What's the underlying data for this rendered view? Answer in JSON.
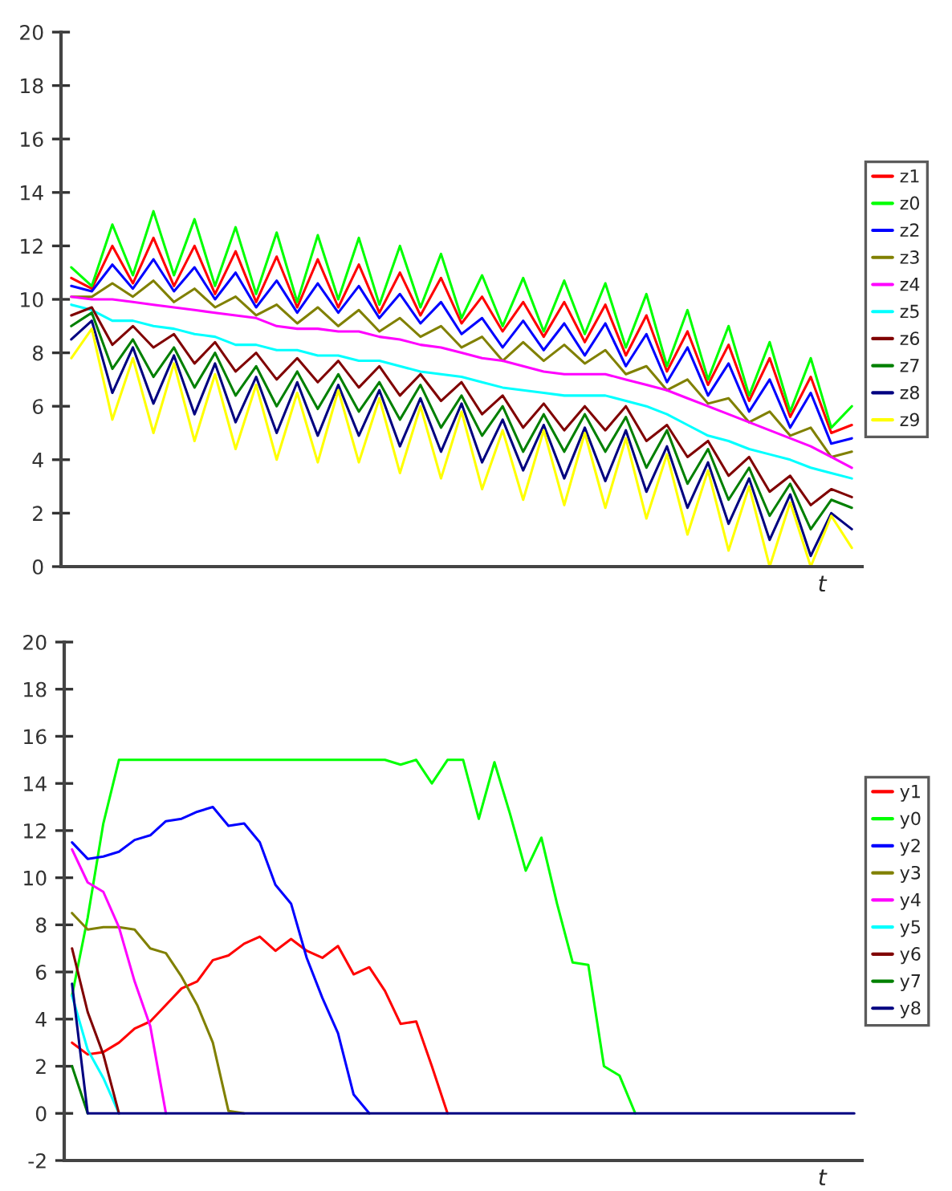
{
  "chart_data": [
    {
      "type": "line",
      "xlabel": "t",
      "tick_labels": "y",
      "legend": "right",
      "ylim": [
        0,
        20
      ],
      "yticks": [
        0,
        2,
        4,
        6,
        8,
        10,
        12,
        14,
        16,
        18,
        20
      ],
      "categories": [
        null,
        null,
        null,
        null,
        null,
        null,
        null,
        null,
        null,
        null,
        null,
        null,
        null,
        null,
        null,
        null,
        null,
        null,
        null,
        null,
        null,
        null,
        null,
        null,
        null,
        null,
        null,
        null,
        null,
        null,
        null,
        null,
        null,
        null,
        null,
        null,
        null,
        null,
        null
      ],
      "series": [
        {
          "name": "z1",
          "color": "#ff0000",
          "values": [
            10.8,
            10.4,
            12.0,
            10.6,
            12.3,
            10.5,
            12.0,
            10.2,
            11.8,
            9.9,
            11.6,
            9.7,
            11.5,
            9.7,
            11.3,
            9.5,
            11.0,
            9.4,
            10.8,
            9.1,
            10.1,
            8.8,
            9.9,
            8.6,
            9.9,
            8.4,
            9.8,
            7.9,
            9.4,
            7.3,
            8.8,
            6.8,
            8.3,
            6.2,
            7.8,
            5.6,
            7.1,
            5.0,
            5.3
          ]
        },
        {
          "name": "z0",
          "color": "#00ff00",
          "values": [
            11.2,
            10.5,
            12.8,
            10.9,
            13.3,
            10.9,
            13.0,
            10.5,
            12.7,
            10.2,
            12.5,
            9.9,
            12.4,
            10.0,
            12.3,
            9.8,
            12.0,
            9.7,
            11.7,
            9.3,
            10.9,
            9.0,
            10.8,
            8.8,
            10.7,
            8.7,
            10.6,
            8.2,
            10.2,
            7.5,
            9.6,
            7.0,
            9.0,
            6.4,
            8.4,
            5.8,
            7.8,
            5.2,
            6.0
          ]
        },
        {
          "name": "z2",
          "color": "#0000ff",
          "values": [
            10.5,
            10.3,
            11.3,
            10.4,
            11.5,
            10.3,
            11.2,
            10.0,
            11.0,
            9.7,
            10.7,
            9.5,
            10.6,
            9.5,
            10.5,
            9.3,
            10.2,
            9.1,
            9.9,
            8.7,
            9.3,
            8.2,
            9.2,
            8.1,
            9.1,
            7.9,
            9.1,
            7.5,
            8.7,
            6.9,
            8.2,
            6.4,
            7.6,
            5.8,
            7.0,
            5.2,
            6.5,
            4.6,
            4.8
          ]
        },
        {
          "name": "z3",
          "color": "#808000",
          "values": [
            10.1,
            10.1,
            10.6,
            10.1,
            10.7,
            9.9,
            10.4,
            9.7,
            10.1,
            9.4,
            9.8,
            9.1,
            9.7,
            9.0,
            9.6,
            8.8,
            9.3,
            8.6,
            9.0,
            8.2,
            8.6,
            7.7,
            8.4,
            7.7,
            8.3,
            7.6,
            8.1,
            7.2,
            7.5,
            6.6,
            7.0,
            6.1,
            6.3,
            5.4,
            5.8,
            4.9,
            5.2,
            4.1,
            4.3
          ]
        },
        {
          "name": "z4",
          "color": "#ff00ff",
          "values": [
            10.1,
            10.0,
            10.0,
            9.9,
            9.8,
            9.7,
            9.6,
            9.5,
            9.4,
            9.3,
            9.0,
            8.9,
            8.9,
            8.8,
            8.8,
            8.6,
            8.5,
            8.3,
            8.2,
            8.0,
            7.8,
            7.7,
            7.5,
            7.3,
            7.2,
            7.2,
            7.2,
            7.0,
            6.8,
            6.6,
            6.3,
            6.0,
            5.7,
            5.4,
            5.1,
            4.8,
            4.5,
            4.1,
            3.7
          ]
        },
        {
          "name": "z5",
          "color": "#00ffff",
          "values": [
            9.8,
            9.6,
            9.2,
            9.2,
            9.0,
            8.9,
            8.7,
            8.6,
            8.3,
            8.3,
            8.1,
            8.1,
            7.9,
            7.9,
            7.7,
            7.7,
            7.5,
            7.3,
            7.2,
            7.1,
            6.9,
            6.7,
            6.6,
            6.5,
            6.4,
            6.4,
            6.4,
            6.2,
            6.0,
            5.7,
            5.3,
            4.9,
            4.7,
            4.4,
            4.2,
            4.0,
            3.7,
            3.5,
            3.3
          ]
        },
        {
          "name": "z6",
          "color": "#800000",
          "values": [
            9.4,
            9.7,
            8.3,
            9.0,
            8.2,
            8.7,
            7.6,
            8.4,
            7.3,
            8.0,
            7.0,
            7.8,
            6.9,
            7.7,
            6.7,
            7.5,
            6.4,
            7.2,
            6.2,
            6.9,
            5.7,
            6.4,
            5.2,
            6.1,
            5.1,
            6.0,
            5.1,
            6.0,
            4.7,
            5.3,
            4.1,
            4.7,
            3.4,
            4.1,
            2.8,
            3.4,
            2.3,
            2.9,
            2.6
          ]
        },
        {
          "name": "z7",
          "color": "#008000",
          "values": [
            9.0,
            9.5,
            7.4,
            8.5,
            7.1,
            8.2,
            6.7,
            8.0,
            6.4,
            7.5,
            6.0,
            7.3,
            5.9,
            7.2,
            5.8,
            6.9,
            5.5,
            6.8,
            5.2,
            6.4,
            4.9,
            6.0,
            4.3,
            5.7,
            4.3,
            5.7,
            4.3,
            5.6,
            3.7,
            5.1,
            3.1,
            4.4,
            2.5,
            3.7,
            1.9,
            3.1,
            1.4,
            2.5,
            2.2
          ]
        },
        {
          "name": "z8",
          "color": "#000080",
          "values": [
            8.5,
            9.2,
            6.5,
            8.2,
            6.1,
            7.9,
            5.7,
            7.6,
            5.4,
            7.1,
            5.0,
            6.9,
            4.9,
            6.8,
            4.9,
            6.6,
            4.5,
            6.3,
            4.3,
            6.1,
            3.9,
            5.5,
            3.6,
            5.3,
            3.3,
            5.2,
            3.2,
            5.1,
            2.8,
            4.5,
            2.2,
            3.9,
            1.6,
            3.3,
            1.0,
            2.7,
            0.4,
            2.0,
            1.4
          ]
        },
        {
          "name": "z9",
          "color": "#ffff00",
          "values": [
            7.8,
            8.9,
            5.5,
            7.8,
            5.0,
            7.6,
            4.7,
            7.2,
            4.4,
            6.8,
            4.0,
            6.5,
            3.9,
            6.6,
            3.9,
            6.3,
            3.5,
            6.0,
            3.3,
            5.8,
            2.9,
            5.1,
            2.5,
            5.1,
            2.3,
            5.0,
            2.2,
            4.8,
            1.8,
            4.2,
            1.2,
            3.6,
            0.6,
            3.0,
            0.0,
            2.4,
            0.0,
            1.9,
            0.7
          ]
        }
      ]
    },
    {
      "type": "line",
      "xlabel": "t",
      "tick_labels": "y",
      "legend": "right",
      "ylim": [
        -2,
        20
      ],
      "yticks": [
        -2,
        0,
        2,
        4,
        6,
        8,
        10,
        12,
        14,
        16,
        18,
        20
      ],
      "categories": [
        null,
        null,
        null,
        null,
        null,
        null,
        null,
        null,
        null,
        null,
        null,
        null,
        null,
        null,
        null,
        null,
        null,
        null,
        null,
        null,
        null,
        null,
        null,
        null,
        null,
        null,
        null,
        null,
        null,
        null,
        null,
        null,
        null,
        null,
        null,
        null,
        null,
        null,
        null,
        null,
        null,
        null,
        null,
        null,
        null,
        null,
        null,
        null,
        null,
        null,
        null
      ],
      "series": [
        {
          "name": "y1",
          "color": "#ff0000",
          "values": [
            3.0,
            2.5,
            2.6,
            3.0,
            3.6,
            3.9,
            4.6,
            5.3,
            5.6,
            6.5,
            6.7,
            7.2,
            7.5,
            6.9,
            7.4,
            6.9,
            6.6,
            7.1,
            5.9,
            6.2,
            5.2,
            3.8,
            3.9,
            2.0,
            0,
            null,
            null,
            null,
            null,
            null,
            null,
            null,
            null,
            null,
            null,
            null,
            null,
            null,
            null,
            null,
            null,
            null,
            null,
            null,
            null,
            null,
            null,
            null,
            null,
            null,
            null
          ]
        },
        {
          "name": "y0",
          "color": "#00ff00",
          "values": [
            5.0,
            8.3,
            12.3,
            15.0,
            15.0,
            15.0,
            15.0,
            15.0,
            15.0,
            15.0,
            15.0,
            15.0,
            15.0,
            15.0,
            15.0,
            15.0,
            15.0,
            15.0,
            15.0,
            15.0,
            15.0,
            14.8,
            15.0,
            14.0,
            15.0,
            15.0,
            12.5,
            14.9,
            12.7,
            10.3,
            11.7,
            8.9,
            6.4,
            6.3,
            2.0,
            1.6,
            0,
            null,
            null,
            null,
            null,
            null,
            null,
            null,
            null,
            null,
            null,
            null,
            null,
            null,
            null
          ]
        },
        {
          "name": "y2",
          "color": "#0000ff",
          "values": [
            11.5,
            10.8,
            10.9,
            11.1,
            11.6,
            11.8,
            12.4,
            12.5,
            12.8,
            13.0,
            12.2,
            12.3,
            11.5,
            9.7,
            8.9,
            6.6,
            4.9,
            3.4,
            0.8,
            0,
            null,
            null,
            null,
            null,
            null,
            null,
            null,
            null,
            null,
            null,
            null,
            null,
            null,
            null,
            null,
            null,
            null,
            null,
            null,
            null,
            null,
            null,
            null,
            null,
            null,
            null,
            null,
            null,
            null,
            null,
            null
          ]
        },
        {
          "name": "y3",
          "color": "#808000",
          "values": [
            8.5,
            7.8,
            7.9,
            7.9,
            7.8,
            7.0,
            6.8,
            5.8,
            4.6,
            3.0,
            0.1,
            0,
            null,
            null,
            null,
            null,
            null,
            null,
            null,
            null,
            null,
            null,
            null,
            null,
            null,
            null,
            null,
            null,
            null,
            null,
            null,
            null,
            null,
            null,
            null,
            null,
            null,
            null,
            null,
            null,
            null,
            null,
            null,
            null,
            null,
            null,
            null,
            null,
            null,
            null,
            null
          ]
        },
        {
          "name": "y4",
          "color": "#ff00ff",
          "values": [
            11.2,
            9.8,
            9.4,
            7.9,
            5.6,
            3.7,
            0,
            null,
            null,
            null,
            null,
            null,
            null,
            null,
            null,
            null,
            null,
            null,
            null,
            null,
            null,
            null,
            null,
            null,
            null,
            null,
            null,
            null,
            null,
            null,
            null,
            null,
            null,
            null,
            null,
            null,
            null,
            null,
            null,
            null,
            null,
            null,
            null,
            null,
            null,
            null,
            null,
            null,
            null,
            null,
            null
          ]
        },
        {
          "name": "y5",
          "color": "#00ffff",
          "values": [
            5.0,
            2.7,
            1.5,
            0,
            null,
            null,
            null,
            null,
            null,
            null,
            null,
            null,
            null,
            null,
            null,
            null,
            null,
            null,
            null,
            null,
            null,
            null,
            null,
            null,
            null,
            null,
            null,
            null,
            null,
            null,
            null,
            null,
            null,
            null,
            null,
            null,
            null,
            null,
            null,
            null,
            null,
            null,
            null,
            null,
            null,
            null,
            null,
            null,
            null,
            null,
            null
          ]
        },
        {
          "name": "y6",
          "color": "#800000",
          "values": [
            7.0,
            4.3,
            2.5,
            0,
            null,
            null,
            null,
            null,
            null,
            null,
            null,
            null,
            null,
            null,
            null,
            null,
            null,
            null,
            null,
            null,
            null,
            null,
            null,
            null,
            null,
            null,
            null,
            null,
            null,
            null,
            null,
            null,
            null,
            null,
            null,
            null,
            null,
            null,
            null,
            null,
            null,
            null,
            null,
            null,
            null,
            null,
            null,
            null,
            null,
            null,
            null
          ]
        },
        {
          "name": "y7",
          "color": "#008000",
          "values": [
            2.0,
            0,
            null,
            null,
            null,
            null,
            null,
            null,
            null,
            null,
            null,
            null,
            null,
            null,
            null,
            null,
            null,
            null,
            null,
            null,
            null,
            null,
            null,
            null,
            null,
            null,
            null,
            null,
            null,
            null,
            null,
            null,
            null,
            null,
            null,
            null,
            null,
            null,
            null,
            null,
            null,
            null,
            null,
            null,
            null,
            null,
            null,
            null,
            null,
            null,
            null
          ]
        },
        {
          "name": "y8",
          "color": "#000080",
          "values": [
            5.5,
            0,
            0,
            0,
            0,
            0,
            0,
            0,
            0,
            0,
            0,
            0,
            0,
            0,
            0,
            0,
            0,
            0,
            0,
            0,
            0,
            0,
            0,
            0,
            0,
            0,
            0,
            0,
            0,
            0,
            0,
            0,
            0,
            0,
            0,
            0,
            0,
            0,
            0,
            0,
            0,
            0,
            0,
            0,
            0,
            0,
            0,
            0,
            0,
            0,
            0
          ]
        }
      ]
    }
  ]
}
